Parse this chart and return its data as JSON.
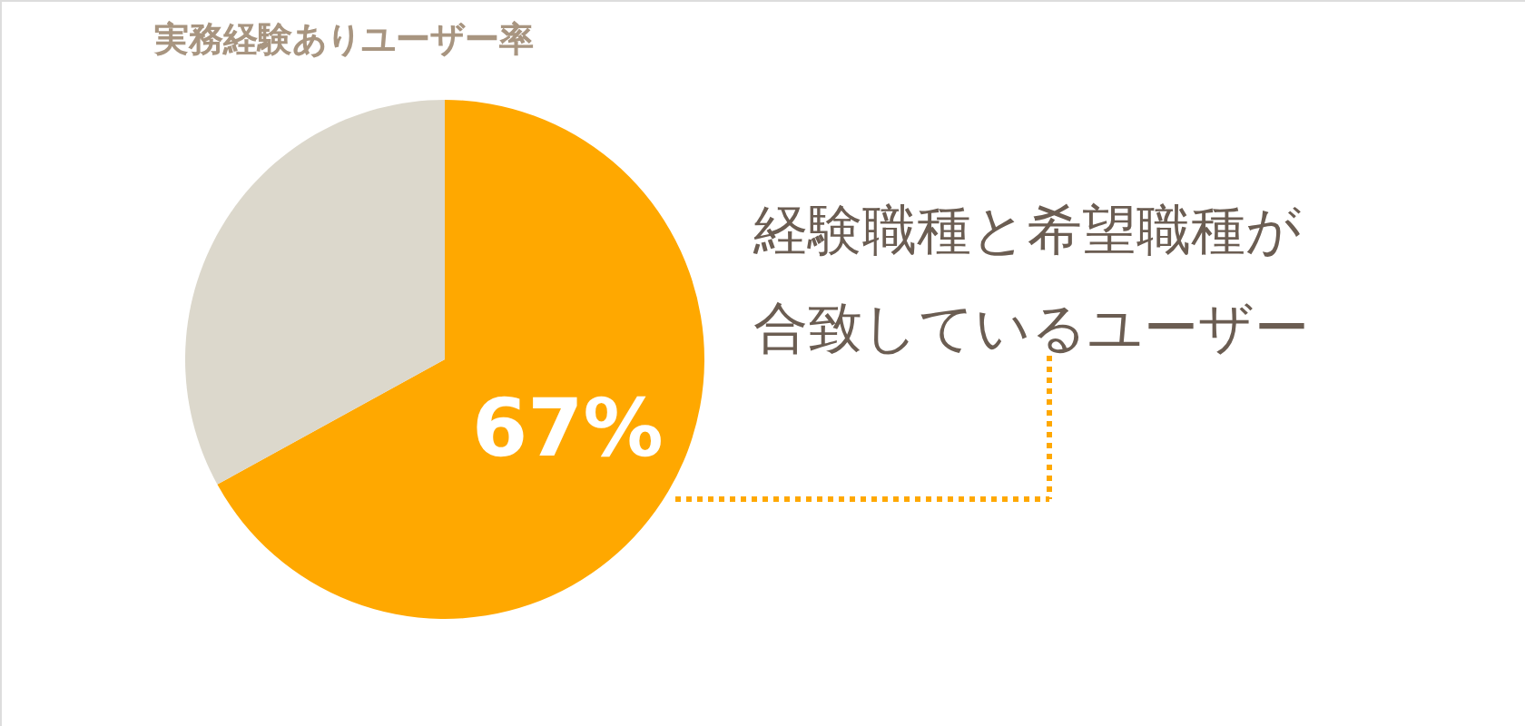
{
  "chart_data": {
    "type": "pie",
    "title": "実務経験ありユーザー率",
    "categories": [
      null,
      null
    ],
    "values": [
      67,
      33
    ],
    "colors": [
      "#ffa800",
      "#dcd8cc"
    ],
    "value_labels": [
      "67%",
      null
    ],
    "annotations": [
      "経験職種と希望職種が",
      "合致しているユーザー"
    ],
    "legend": false
  }
}
